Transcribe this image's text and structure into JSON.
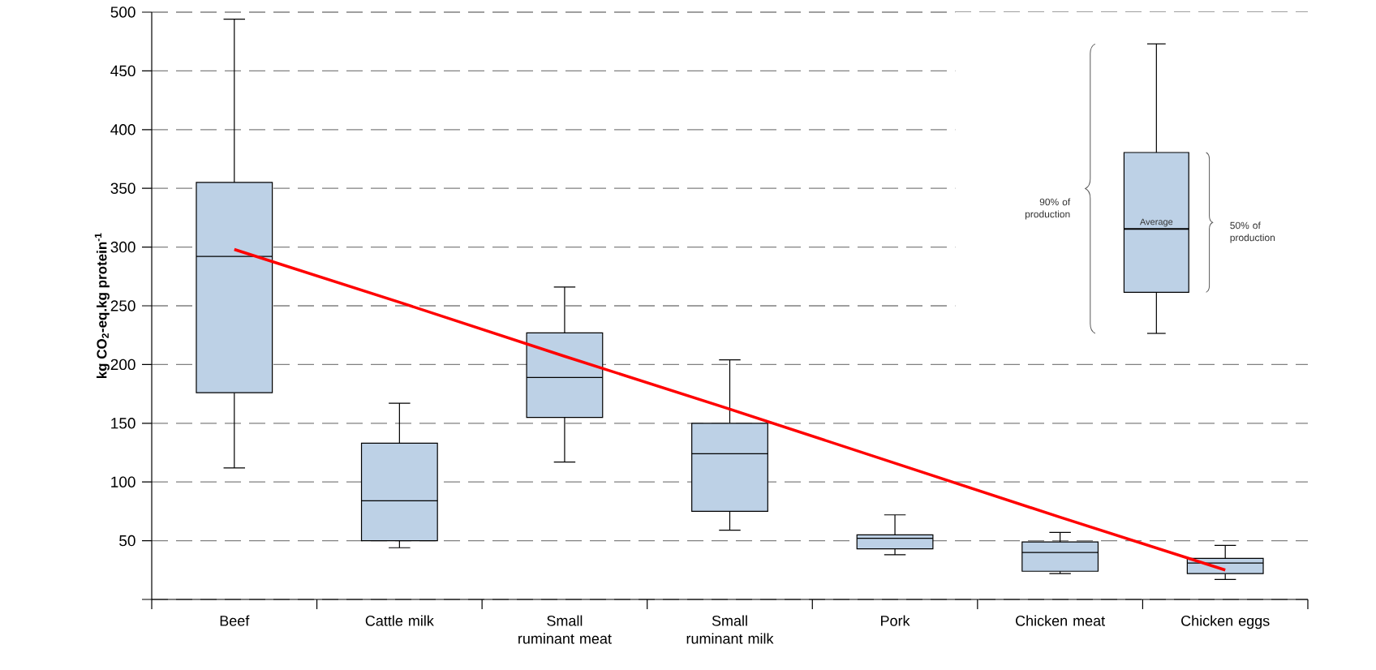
{
  "chart_data": {
    "type": "box",
    "ylabel": "kg CO$_{2}$-eq.kg protein$^{-1}$",
    "categories": [
      "Beef",
      "Cattle milk",
      "Small ruminant meat",
      "Small ruminant milk",
      "Pork",
      "Chicken meat",
      "Chicken eggs"
    ],
    "series": [
      {
        "color": "#bdd1e6",
        "boxes": [
          {
            "low": 112,
            "q1": 176,
            "median": 292,
            "q3": 355,
            "high": 494
          },
          {
            "low": 44,
            "q1": 50,
            "median": 84,
            "q3": 133,
            "high": 167
          },
          {
            "low": 117,
            "q1": 155,
            "median": 189,
            "q3": 227,
            "high": 266
          },
          {
            "low": 59,
            "q1": 75,
            "median": 124,
            "q3": 150,
            "high": 204
          },
          {
            "low": 38,
            "q1": 43,
            "median": 52,
            "q3": 55,
            "high": 72
          },
          {
            "low": 22,
            "q1": 24,
            "median": 40,
            "q3": 49,
            "high": 57
          },
          {
            "low": 17,
            "q1": 22,
            "median": 31,
            "q3": 35,
            "high": 46
          }
        ]
      },
      {
        "type": "line",
        "color": "#ff0000",
        "values": [
          298,
          253,
          207,
          162,
          116,
          70,
          25
        ]
      }
    ],
    "ylim": [
      0,
      500
    ],
    "yticks": [
      {
        "value": 0,
        "label": null
      },
      50,
      100,
      150,
      200,
      250,
      300,
      350,
      400,
      450,
      500
    ],
    "grid": "y",
    "annotations": [
      "90% of production",
      "Average",
      "50% of production"
    ]
  }
}
